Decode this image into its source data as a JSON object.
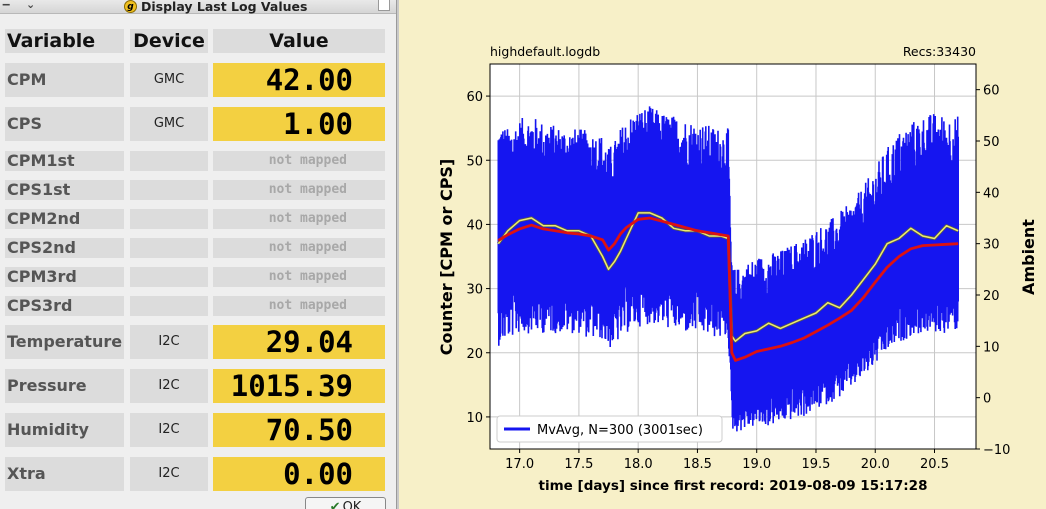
{
  "dialog": {
    "title": "Display Last Log Values",
    "menu_icon": "window-menu-icon",
    "headers": {
      "variable": "Variable",
      "device": "Device",
      "value": "Value"
    },
    "rows": [
      {
        "name": "CPM",
        "device": "GMC",
        "value": "42.00",
        "mapped": true
      },
      {
        "name": "CPS",
        "device": "GMC",
        "value": "1.00",
        "mapped": true
      },
      {
        "name": "CPM1st",
        "device": "",
        "value": "not mapped",
        "mapped": false
      },
      {
        "name": "CPS1st",
        "device": "",
        "value": "not mapped",
        "mapped": false
      },
      {
        "name": "CPM2nd",
        "device": "",
        "value": "not mapped",
        "mapped": false
      },
      {
        "name": "CPS2nd",
        "device": "",
        "value": "not mapped",
        "mapped": false
      },
      {
        "name": "CPM3rd",
        "device": "",
        "value": "not mapped",
        "mapped": false
      },
      {
        "name": "CPS3rd",
        "device": "",
        "value": "not mapped",
        "mapped": false
      },
      {
        "name": "Temperature",
        "device": "I2C",
        "value": "29.04",
        "mapped": true
      },
      {
        "name": "Pressure",
        "device": "I2C",
        "value": "1015.39",
        "mapped": true
      },
      {
        "name": "Humidity",
        "device": "I2C",
        "value": "70.50",
        "mapped": true
      },
      {
        "name": "Xtra",
        "device": "I2C",
        "value": "0.00",
        "mapped": true
      }
    ],
    "ok_label": "OK",
    "colors": {
      "mapped_value_bg": "#f3d041",
      "cell_bg": "#dcdcdc"
    }
  },
  "plot": {
    "file_label": "highdefault.logdb",
    "records_label": "Recs:33430",
    "colors": {
      "background": "#f7f0c8",
      "raw": "#1515f0",
      "mvavg": "#dd1111",
      "ambient": "#ecec70"
    }
  },
  "chart_data": {
    "type": "line",
    "title": "",
    "xlabel": "time [days] since first record: 2019-08-09 15:17:28",
    "ylabel": "Counter  [CPM or CPS]",
    "y2label": "Ambient",
    "xlim": [
      16.75,
      20.85
    ],
    "ylim": [
      5,
      65
    ],
    "y2lim": [
      -10,
      65
    ],
    "xticks": [
      "17.0",
      "17.5",
      "18.0",
      "18.5",
      "19.0",
      "19.5",
      "20.0",
      "20.5"
    ],
    "yticks": [
      "10",
      "20",
      "30",
      "40",
      "50",
      "60"
    ],
    "y2ticks": [
      "−10",
      "0",
      "10",
      "20",
      "30",
      "40",
      "50",
      "60"
    ],
    "grid": true,
    "legend": {
      "position": "bottom-left",
      "entries": [
        "MvAvg, N=300 (3001sec)"
      ]
    },
    "series": [
      {
        "name": "MvAvg, N=300 (3001sec)",
        "axis": "left",
        "x": [
          16.82,
          16.9,
          17.0,
          17.1,
          17.2,
          17.3,
          17.4,
          17.5,
          17.6,
          17.7,
          17.75,
          17.8,
          17.85,
          17.9,
          18.0,
          18.1,
          18.2,
          18.3,
          18.4,
          18.5,
          18.6,
          18.7,
          18.76,
          18.79,
          18.82,
          18.9,
          19.0,
          19.1,
          19.2,
          19.3,
          19.4,
          19.5,
          19.6,
          19.7,
          19.8,
          19.9,
          20.0,
          20.1,
          20.2,
          20.3,
          20.4,
          20.5,
          20.6,
          20.7
        ],
        "y": [
          37.5,
          38.4,
          39.3,
          39.9,
          39.3,
          39.0,
          38.7,
          38.5,
          38.2,
          37.6,
          36.0,
          37.0,
          38.5,
          39.5,
          40.8,
          41.0,
          40.5,
          40.0,
          39.5,
          39.0,
          38.7,
          38.4,
          38.2,
          20.0,
          18.8,
          19.3,
          20.2,
          20.6,
          21.0,
          21.6,
          22.3,
          23.3,
          24.3,
          25.4,
          26.6,
          28.6,
          31.0,
          33.3,
          35.0,
          36.2,
          36.7,
          36.8,
          36.9,
          37.0
        ]
      },
      {
        "name": "",
        "axis": "right",
        "x": [
          16.82,
          16.9,
          17.0,
          17.1,
          17.2,
          17.3,
          17.4,
          17.5,
          17.6,
          17.7,
          17.75,
          17.8,
          17.85,
          17.9,
          18.0,
          18.1,
          18.2,
          18.3,
          18.4,
          18.5,
          18.6,
          18.7,
          18.76,
          18.79,
          18.82,
          18.9,
          19.0,
          19.1,
          19.2,
          19.3,
          19.4,
          19.5,
          19.6,
          19.7,
          19.8,
          19.9,
          20.0,
          20.1,
          20.2,
          20.3,
          20.4,
          20.5,
          20.6,
          20.7
        ],
        "y": [
          30.0,
          32.5,
          34.5,
          35.0,
          33.5,
          33.5,
          32.5,
          32.5,
          31.5,
          27.5,
          25.0,
          26.5,
          28.5,
          31.0,
          36.0,
          36.0,
          35.0,
          33.0,
          32.5,
          32.5,
          31.5,
          31.5,
          31.0,
          12.0,
          11.0,
          12.5,
          13.0,
          14.5,
          13.5,
          14.5,
          15.5,
          16.5,
          18.5,
          17.5,
          20.0,
          23.0,
          26.0,
          30.0,
          31.0,
          33.0,
          31.5,
          31.0,
          33.5,
          32.5
        ]
      },
      {
        "name": "",
        "axis": "left",
        "role": "raw counts (spread envelope)",
        "x": [
          16.82,
          16.9,
          17.0,
          17.1,
          17.2,
          17.3,
          17.4,
          17.5,
          17.6,
          17.7,
          17.75,
          17.8,
          17.85,
          17.9,
          18.0,
          18.1,
          18.2,
          18.3,
          18.4,
          18.5,
          18.6,
          18.7,
          18.76,
          18.79,
          18.82,
          18.9,
          19.0,
          19.1,
          19.2,
          19.3,
          19.4,
          19.5,
          19.6,
          19.7,
          19.8,
          19.9,
          20.0,
          20.1,
          20.2,
          20.3,
          20.4,
          20.5,
          20.6,
          20.7
        ],
        "lower": [
          21.0,
          22.0,
          23.0,
          23.0,
          23.0,
          23.0,
          23.0,
          23.0,
          22.0,
          22.0,
          20.5,
          21.0,
          22.0,
          23.0,
          24.0,
          24.5,
          24.0,
          23.5,
          23.0,
          23.0,
          22.5,
          22.0,
          22.0,
          8.0,
          7.5,
          8.0,
          8.5,
          8.5,
          9.0,
          9.5,
          10.0,
          11.0,
          12.0,
          13.0,
          14.5,
          16.0,
          18.0,
          20.0,
          21.5,
          22.5,
          23.0,
          23.0,
          23.0,
          23.5
        ],
        "upper": [
          56.0,
          55.0,
          56.5,
          57.0,
          56.0,
          55.5,
          55.0,
          55.0,
          54.5,
          54.0,
          52.0,
          53.0,
          55.0,
          56.5,
          58.0,
          58.5,
          57.5,
          57.0,
          56.5,
          56.0,
          55.5,
          55.0,
          55.0,
          34.0,
          33.0,
          34.0,
          35.0,
          35.5,
          36.0,
          37.0,
          38.0,
          39.5,
          40.5,
          42.0,
          43.5,
          46.0,
          49.0,
          52.0,
          54.5,
          56.0,
          57.0,
          57.5,
          57.0,
          57.0
        ]
      }
    ]
  }
}
